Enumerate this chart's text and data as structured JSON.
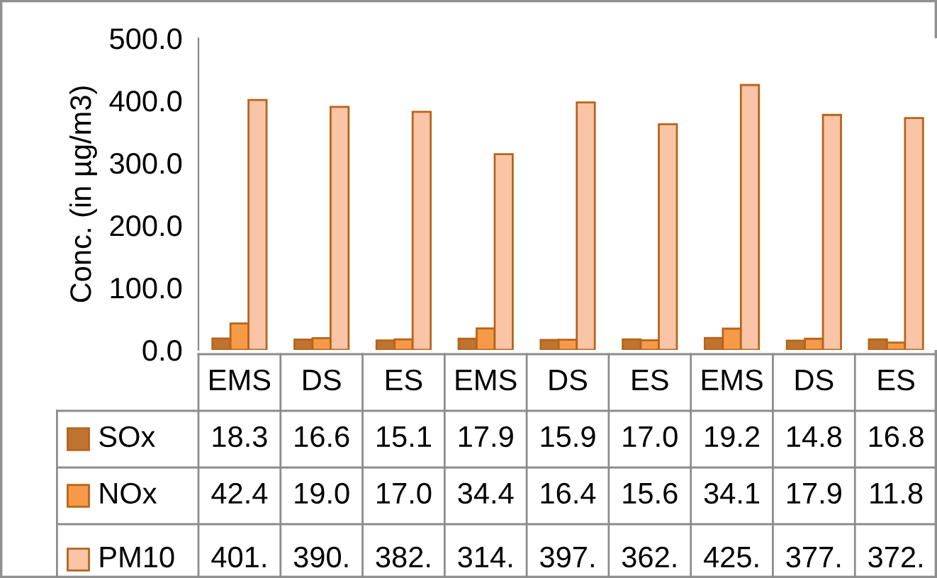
{
  "chart_data": {
    "type": "bar",
    "ylabel": "Conc. (in µg/m3)",
    "categories": [
      "EMS",
      "DS",
      "ES",
      "EMS",
      "DS",
      "ES",
      "EMS",
      "DS",
      "ES"
    ],
    "series": [
      {
        "name": "SOx",
        "color": "#c0732f",
        "values": [
          18.3,
          16.6,
          15.1,
          17.9,
          15.9,
          17.0,
          19.2,
          14.8,
          16.8
        ],
        "value_labels": [
          "18.3",
          "16.6",
          "15.1",
          "17.9",
          "15.9",
          "17.0",
          "19.2",
          "14.8",
          "16.8"
        ]
      },
      {
        "name": "NOx",
        "color": "#f79a48",
        "values": [
          42.4,
          19.0,
          17.0,
          34.4,
          16.4,
          15.6,
          34.1,
          17.9,
          11.8
        ],
        "value_labels": [
          "42.4",
          "19.0",
          "17.0",
          "34.4",
          "16.4",
          "15.6",
          "34.1",
          "17.9",
          "11.8"
        ]
      },
      {
        "name": "PM10",
        "color": "#fac4a6",
        "values": [
          401,
          390,
          382,
          314,
          397,
          362,
          425,
          377,
          372
        ],
        "value_labels": [
          "401.",
          "390.",
          "382.",
          "314.",
          "397.",
          "362.",
          "425.",
          "377.",
          "372."
        ]
      }
    ],
    "ylim": [
      0,
      500
    ],
    "yticks": [
      {
        "value": 0,
        "label": "0.0"
      },
      {
        "value": 100,
        "label": "100.0"
      },
      {
        "value": 200,
        "label": "200.0"
      },
      {
        "value": 300,
        "label": "300.0"
      },
      {
        "value": 400,
        "label": "400.0"
      },
      {
        "value": 500,
        "label": "500.0"
      }
    ],
    "data_labels": true,
    "legend": "bottom left",
    "grid": false
  }
}
